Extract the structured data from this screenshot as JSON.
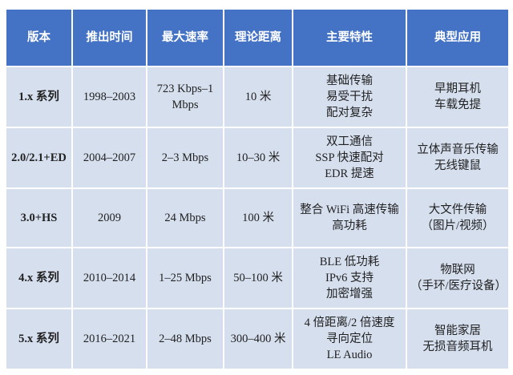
{
  "colors": {
    "header_bg": "#4472c4",
    "row_bg": "#d6dfee",
    "border": "#ffffff"
  },
  "headers": [
    "版本",
    "推出时间",
    "最大速率",
    "理论距离",
    "主要特性",
    "典型应用"
  ],
  "rows": [
    {
      "version": "1.x 系列",
      "date": "1998–2003",
      "speed": [
        "723 Kbps–1",
        "Mbps"
      ],
      "range": "10 米",
      "features": [
        "基础传输",
        "易受干扰",
        "配对复杂"
      ],
      "apps": [
        "早期耳机",
        "车载免提"
      ]
    },
    {
      "version": "2.0/2.1+ED",
      "date": "2004–2007",
      "speed": [
        "2–3 Mbps"
      ],
      "range": "10–30 米",
      "features": [
        "双工通信",
        "SSP 快速配对",
        "EDR 提速"
      ],
      "apps": [
        "立体声音乐传输",
        "无线键鼠"
      ]
    },
    {
      "version": "3.0+HS",
      "date": "2009",
      "speed": [
        "24 Mbps"
      ],
      "range": "100 米",
      "features": [
        "整合 WiFi 高速传输",
        "高功耗"
      ],
      "apps": [
        "大文件传输",
        "（图片/视频）"
      ]
    },
    {
      "version": "4.x 系列",
      "date": "2010–2014",
      "speed": [
        "1–25 Mbps"
      ],
      "range": "50–100 米",
      "features": [
        "BLE 低功耗",
        "IPv6 支持",
        "加密增强"
      ],
      "apps": [
        "物联网",
        "（手环/医疗设备）"
      ]
    },
    {
      "version": "5.x 系列",
      "date": "2016–2021",
      "speed": [
        "2–48 Mbps"
      ],
      "range": "300–400 米",
      "features": [
        "4 倍距离/2 倍速度",
        "寻向定位",
        "LE Audio"
      ],
      "apps": [
        "智能家居",
        "无损音频耳机"
      ]
    }
  ]
}
